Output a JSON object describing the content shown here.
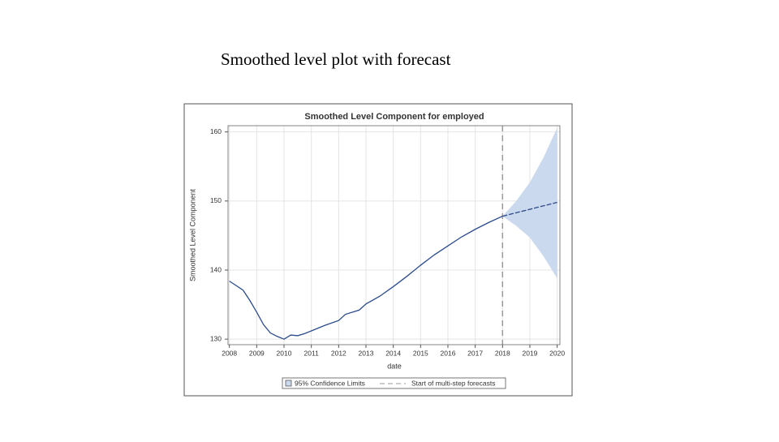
{
  "slide_title": "Smoothed level plot with forecast",
  "chart_data": {
    "type": "line",
    "title": "Smoothed Level Component for employed",
    "x_label": "date",
    "y_label": "Smoothed Level Component",
    "xlim": [
      2007.95,
      2020.1
    ],
    "ylim": [
      129.2,
      160.9
    ],
    "xticks": [
      2008,
      2009,
      2010,
      2011,
      2012,
      2013,
      2014,
      2015,
      2016,
      2017,
      2018,
      2019,
      2020
    ],
    "yticks": [
      130,
      140,
      150,
      160
    ],
    "grid": true,
    "series": [
      {
        "color": "#2b4b8c",
        "x": [
          2008.0,
          2008.5,
          2008.75,
          2009.0,
          2009.25,
          2009.5,
          2009.75,
          2010.0,
          2010.25,
          2010.5,
          2010.75,
          2011.0,
          2011.5,
          2012.0,
          2012.25,
          2012.75,
          2013.0,
          2013.5,
          2014.0,
          2014.5,
          2015.0,
          2015.5,
          2016.0,
          2016.5,
          2017.0,
          2017.5,
          2018.0
        ],
        "values": [
          138.4,
          137.1,
          135.6,
          133.9,
          132.1,
          130.9,
          130.4,
          130.0,
          130.6,
          130.5,
          130.8,
          131.2,
          132.0,
          132.7,
          133.6,
          134.2,
          135.1,
          136.2,
          137.6,
          139.1,
          140.7,
          142.2,
          143.5,
          144.8,
          145.9,
          146.9,
          147.8
        ]
      },
      {
        "color": "#2b4b8c",
        "dashed": true,
        "x": [
          2018.0,
          2018.5,
          2019.0,
          2019.5,
          2020.0
        ],
        "values": [
          147.8,
          148.3,
          148.8,
          149.3,
          149.8
        ]
      }
    ],
    "band": {
      "name": "95% Confidence Limits",
      "color": "#cbd9ee",
      "x": [
        2018.0,
        2018.5,
        2019.0,
        2019.5,
        2020.0
      ],
      "upper": [
        147.8,
        150.0,
        152.7,
        156.3,
        160.6
      ],
      "lower": [
        147.8,
        146.4,
        144.7,
        142.0,
        138.8
      ]
    },
    "vline": {
      "name": "Start of multi-step forecasts",
      "x": 2018,
      "color": "#999999"
    }
  }
}
